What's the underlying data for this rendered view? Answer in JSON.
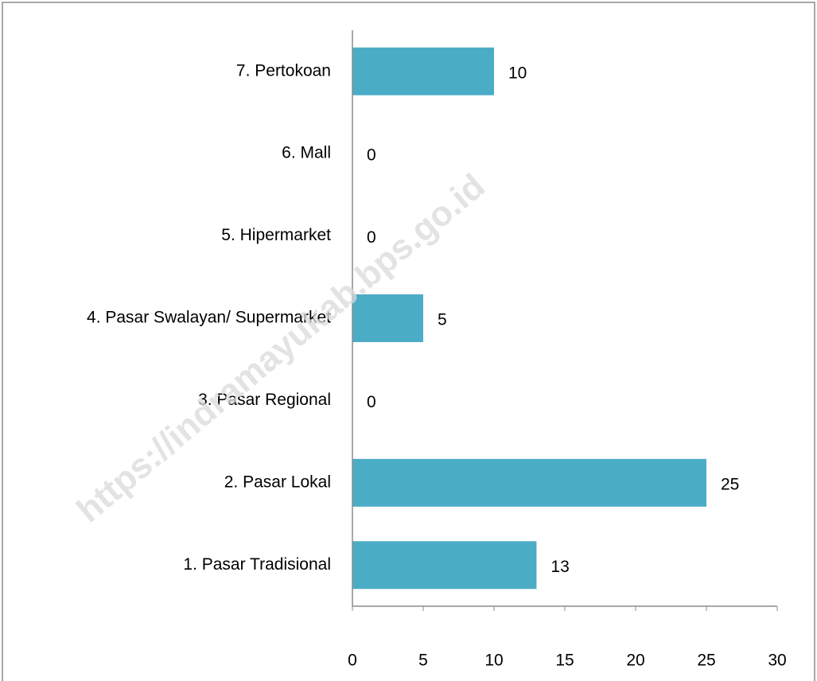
{
  "chart_data": {
    "type": "hbar",
    "categories": [
      "1. Pasar Tradisional",
      "2. Pasar Lokal",
      "3. Pasar Regional",
      "4. Pasar Swalayan/ Supermarket",
      "5. Hipermarket",
      "6. Mall",
      "7. Pertokoan"
    ],
    "values": [
      13,
      25,
      0,
      5,
      0,
      0,
      10
    ],
    "color": "#4bacc6",
    "xlim": [
      0,
      30
    ],
    "xticks": [
      0,
      5,
      10,
      15,
      20,
      25,
      30
    ],
    "grid": false,
    "watermark": "https://indramayukab.bps.go.id"
  }
}
